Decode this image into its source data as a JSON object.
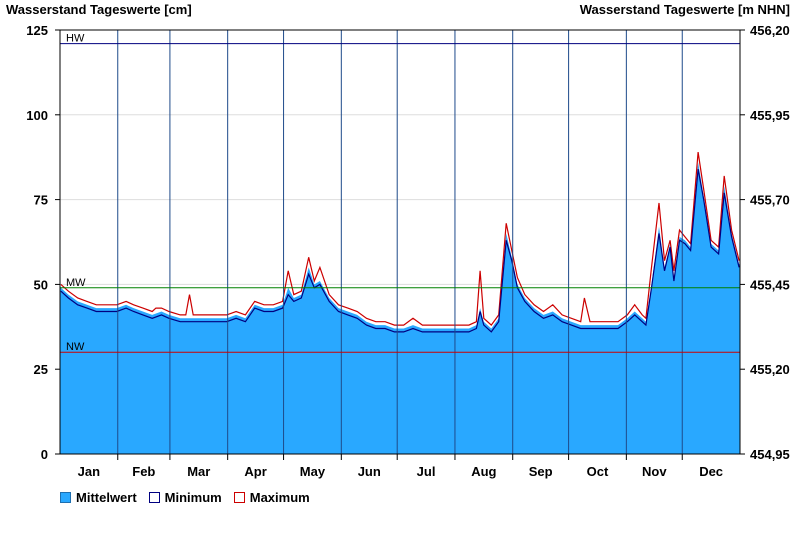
{
  "chart_data": {
    "type": "area",
    "title_left": "Wasserstand Tageswerte [cm]",
    "title_right": "Wasserstand Tageswerte [m NHN]",
    "months": [
      "Jan",
      "Feb",
      "Mar",
      "Apr",
      "May",
      "Jun",
      "Jul",
      "Aug",
      "Sep",
      "Oct",
      "Nov",
      "Dec"
    ],
    "days_in_months": [
      31,
      28,
      31,
      30,
      31,
      30,
      31,
      31,
      30,
      31,
      30,
      31
    ],
    "ylim_left": [
      0,
      125
    ],
    "yticks_left": [
      "0",
      "25",
      "50",
      "75",
      "100",
      "125"
    ],
    "ylim_right": [
      454.95,
      456.2
    ],
    "yticks_right": [
      "454,95",
      "455,20",
      "455,45",
      "455,70",
      "455,95",
      "456,20"
    ],
    "reference_lines": [
      {
        "label": "HW",
        "value": 121,
        "color": "#00007f"
      },
      {
        "label": "MW",
        "value": 49,
        "color": "#008000"
      },
      {
        "label": "NW",
        "value": 30,
        "color": "#cc0000"
      }
    ],
    "colors": {
      "fill": "#29a8ff",
      "minimum": "#000080",
      "maximum": "#cc0000",
      "grid": "#dddddd",
      "month_line": "#1e4a8a"
    },
    "grid": true,
    "legend_position": "bottom-left",
    "series": [
      {
        "name": "Mittelwert",
        "points": [
          [
            1,
            49
          ],
          [
            5,
            47
          ],
          [
            10,
            45
          ],
          [
            15,
            44
          ],
          [
            20,
            43
          ],
          [
            25,
            43
          ],
          [
            31,
            43
          ],
          [
            36,
            44
          ],
          [
            40,
            43
          ],
          [
            45,
            42
          ],
          [
            50,
            41
          ],
          [
            55,
            42
          ],
          [
            59,
            41
          ],
          [
            65,
            40
          ],
          [
            70,
            40
          ],
          [
            75,
            40
          ],
          [
            80,
            40
          ],
          [
            85,
            40
          ],
          [
            90,
            40
          ],
          [
            95,
            41
          ],
          [
            100,
            40
          ],
          [
            105,
            44
          ],
          [
            110,
            43
          ],
          [
            115,
            43
          ],
          [
            120,
            44
          ],
          [
            123,
            49
          ],
          [
            126,
            46
          ],
          [
            130,
            47
          ],
          [
            134,
            55
          ],
          [
            137,
            50
          ],
          [
            140,
            51
          ],
          [
            145,
            46
          ],
          [
            150,
            43
          ],
          [
            155,
            42
          ],
          [
            160,
            41
          ],
          [
            165,
            39
          ],
          [
            170,
            38
          ],
          [
            175,
            38
          ],
          [
            180,
            37
          ],
          [
            185,
            37
          ],
          [
            190,
            38
          ],
          [
            195,
            37
          ],
          [
            200,
            37
          ],
          [
            205,
            37
          ],
          [
            210,
            37
          ],
          [
            215,
            37
          ],
          [
            220,
            37
          ],
          [
            224,
            38
          ],
          [
            226,
            43
          ],
          [
            228,
            39
          ],
          [
            232,
            37
          ],
          [
            236,
            40
          ],
          [
            240,
            65
          ],
          [
            243,
            58
          ],
          [
            246,
            50
          ],
          [
            250,
            46
          ],
          [
            255,
            43
          ],
          [
            260,
            41
          ],
          [
            265,
            42
          ],
          [
            270,
            40
          ],
          [
            275,
            39
          ],
          [
            280,
            38
          ],
          [
            285,
            38
          ],
          [
            290,
            38
          ],
          [
            295,
            38
          ],
          [
            300,
            38
          ],
          [
            305,
            40
          ],
          [
            309,
            42
          ],
          [
            313,
            40
          ],
          [
            315,
            39
          ],
          [
            318,
            50
          ],
          [
            322,
            67
          ],
          [
            325,
            55
          ],
          [
            328,
            62
          ],
          [
            330,
            52
          ],
          [
            333,
            64
          ],
          [
            336,
            63
          ],
          [
            339,
            61
          ],
          [
            343,
            86
          ],
          [
            346,
            76
          ],
          [
            350,
            62
          ],
          [
            354,
            60
          ],
          [
            357,
            79
          ],
          [
            361,
            65
          ],
          [
            365,
            56
          ]
        ]
      },
      {
        "name": "Minimum",
        "points": [
          [
            1,
            48
          ],
          [
            5,
            46
          ],
          [
            10,
            44
          ],
          [
            15,
            43
          ],
          [
            20,
            42
          ],
          [
            25,
            42
          ],
          [
            31,
            42
          ],
          [
            36,
            43
          ],
          [
            40,
            42
          ],
          [
            45,
            41
          ],
          [
            50,
            40
          ],
          [
            55,
            41
          ],
          [
            59,
            40
          ],
          [
            65,
            39
          ],
          [
            70,
            39
          ],
          [
            75,
            39
          ],
          [
            80,
            39
          ],
          [
            85,
            39
          ],
          [
            90,
            39
          ],
          [
            95,
            40
          ],
          [
            100,
            39
          ],
          [
            105,
            43
          ],
          [
            110,
            42
          ],
          [
            115,
            42
          ],
          [
            120,
            43
          ],
          [
            123,
            47
          ],
          [
            126,
            45
          ],
          [
            130,
            46
          ],
          [
            134,
            53
          ],
          [
            137,
            49
          ],
          [
            140,
            50
          ],
          [
            145,
            45
          ],
          [
            150,
            42
          ],
          [
            155,
            41
          ],
          [
            160,
            40
          ],
          [
            165,
            38
          ],
          [
            170,
            37
          ],
          [
            175,
            37
          ],
          [
            180,
            36
          ],
          [
            185,
            36
          ],
          [
            190,
            37
          ],
          [
            195,
            36
          ],
          [
            200,
            36
          ],
          [
            205,
            36
          ],
          [
            210,
            36
          ],
          [
            215,
            36
          ],
          [
            220,
            36
          ],
          [
            224,
            37
          ],
          [
            226,
            42
          ],
          [
            228,
            38
          ],
          [
            232,
            36
          ],
          [
            236,
            39
          ],
          [
            240,
            63
          ],
          [
            243,
            57
          ],
          [
            246,
            49
          ],
          [
            250,
            45
          ],
          [
            255,
            42
          ],
          [
            260,
            40
          ],
          [
            265,
            41
          ],
          [
            270,
            39
          ],
          [
            275,
            38
          ],
          [
            280,
            37
          ],
          [
            285,
            37
          ],
          [
            290,
            37
          ],
          [
            295,
            37
          ],
          [
            300,
            37
          ],
          [
            305,
            39
          ],
          [
            309,
            41
          ],
          [
            313,
            39
          ],
          [
            315,
            38
          ],
          [
            318,
            49
          ],
          [
            322,
            65
          ],
          [
            325,
            54
          ],
          [
            328,
            61
          ],
          [
            330,
            51
          ],
          [
            333,
            63
          ],
          [
            336,
            62
          ],
          [
            339,
            60
          ],
          [
            343,
            84
          ],
          [
            346,
            75
          ],
          [
            350,
            61
          ],
          [
            354,
            59
          ],
          [
            357,
            77
          ],
          [
            361,
            64
          ],
          [
            365,
            55
          ]
        ]
      },
      {
        "name": "Maximum",
        "points": [
          [
            1,
            50
          ],
          [
            5,
            48
          ],
          [
            10,
            46
          ],
          [
            15,
            45
          ],
          [
            20,
            44
          ],
          [
            25,
            44
          ],
          [
            31,
            44
          ],
          [
            36,
            45
          ],
          [
            40,
            44
          ],
          [
            45,
            43
          ],
          [
            50,
            42
          ],
          [
            52,
            43
          ],
          [
            55,
            43
          ],
          [
            59,
            42
          ],
          [
            65,
            41
          ],
          [
            68,
            41
          ],
          [
            70,
            47
          ],
          [
            72,
            41
          ],
          [
            75,
            41
          ],
          [
            80,
            41
          ],
          [
            85,
            41
          ],
          [
            90,
            41
          ],
          [
            95,
            42
          ],
          [
            100,
            41
          ],
          [
            105,
            45
          ],
          [
            110,
            44
          ],
          [
            115,
            44
          ],
          [
            120,
            45
          ],
          [
            123,
            54
          ],
          [
            126,
            47
          ],
          [
            130,
            48
          ],
          [
            134,
            58
          ],
          [
            137,
            51
          ],
          [
            140,
            55
          ],
          [
            145,
            47
          ],
          [
            150,
            44
          ],
          [
            155,
            43
          ],
          [
            160,
            42
          ],
          [
            165,
            40
          ],
          [
            170,
            39
          ],
          [
            175,
            39
          ],
          [
            180,
            38
          ],
          [
            185,
            38
          ],
          [
            190,
            40
          ],
          [
            195,
            38
          ],
          [
            200,
            38
          ],
          [
            205,
            38
          ],
          [
            210,
            38
          ],
          [
            215,
            38
          ],
          [
            220,
            38
          ],
          [
            224,
            39
          ],
          [
            226,
            54
          ],
          [
            228,
            40
          ],
          [
            232,
            38
          ],
          [
            236,
            41
          ],
          [
            240,
            68
          ],
          [
            243,
            60
          ],
          [
            246,
            52
          ],
          [
            250,
            47
          ],
          [
            255,
            44
          ],
          [
            260,
            42
          ],
          [
            265,
            44
          ],
          [
            270,
            41
          ],
          [
            275,
            40
          ],
          [
            280,
            39
          ],
          [
            282,
            46
          ],
          [
            285,
            39
          ],
          [
            290,
            39
          ],
          [
            295,
            39
          ],
          [
            300,
            39
          ],
          [
            305,
            41
          ],
          [
            309,
            44
          ],
          [
            313,
            41
          ],
          [
            315,
            40
          ],
          [
            318,
            55
          ],
          [
            322,
            74
          ],
          [
            325,
            57
          ],
          [
            328,
            63
          ],
          [
            330,
            54
          ],
          [
            333,
            66
          ],
          [
            336,
            64
          ],
          [
            339,
            62
          ],
          [
            343,
            89
          ],
          [
            346,
            78
          ],
          [
            350,
            63
          ],
          [
            354,
            61
          ],
          [
            357,
            82
          ],
          [
            361,
            66
          ],
          [
            365,
            57
          ]
        ]
      }
    ]
  }
}
